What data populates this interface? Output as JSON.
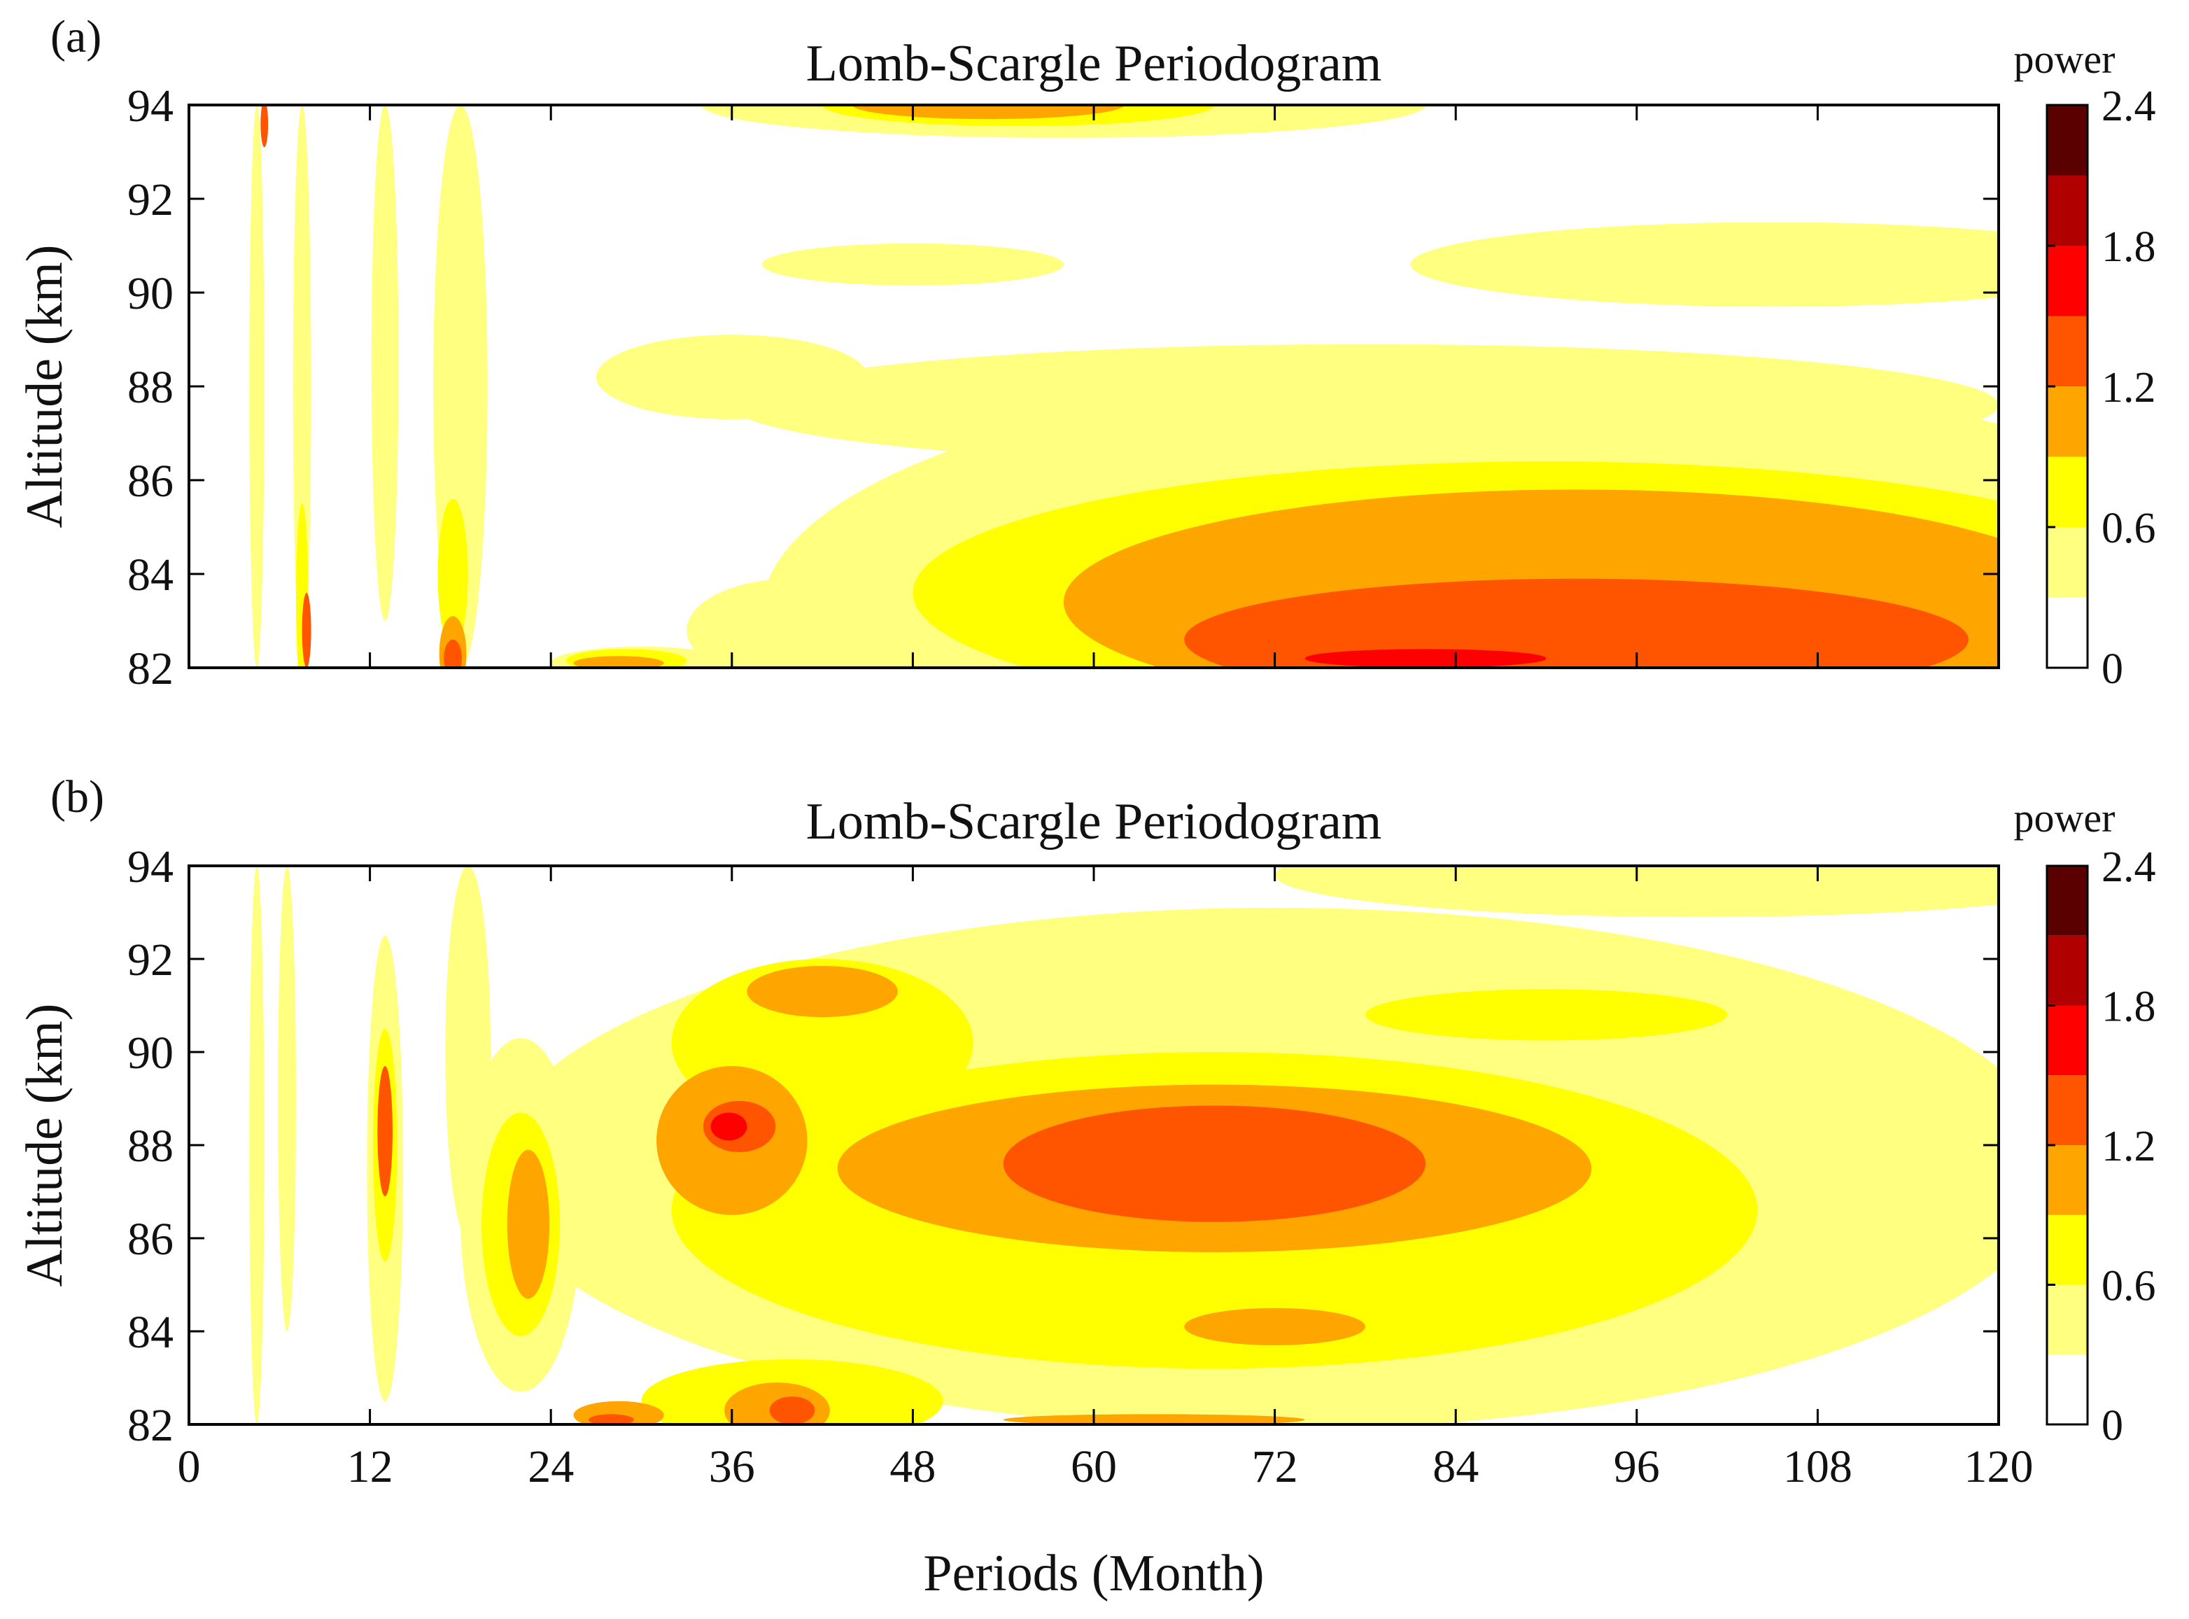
{
  "figure": {
    "xlabel": "Periods (Month)",
    "ylabel": "Altitude (km)"
  },
  "colorbar": {
    "title": "power",
    "levels": [
      0,
      0.3,
      0.6,
      0.9,
      1.2,
      1.5,
      1.8,
      2.1,
      2.4
    ],
    "colors": [
      "#ffffff",
      "#ffff80",
      "#ffff00",
      "#ffa500",
      "#ff5500",
      "#ff0000",
      "#b00000",
      "#5a0000"
    ],
    "tick_values": [
      0,
      0.6,
      1.2,
      1.8,
      2.4
    ],
    "tick_labels": [
      "0",
      "0.6",
      "1.2",
      "1.8",
      "2.4"
    ]
  },
  "chart_data": [
    {
      "type": "heatmap",
      "panel": "(a)",
      "title": "Lomb-Scargle Periodogram",
      "xlabel": "",
      "ylabel": "Altitude (km)",
      "xlim": [
        0,
        120
      ],
      "ylim": [
        82,
        94
      ],
      "x_ticks": [
        0,
        12,
        24,
        36,
        48,
        60,
        72,
        84,
        96,
        108,
        120
      ],
      "x_tick_labels": [],
      "y_ticks": [
        82,
        84,
        86,
        88,
        90,
        92,
        94
      ],
      "y_tick_labels": [
        "82",
        "84",
        "86",
        "88",
        "90",
        "92",
        "94"
      ],
      "regions": [
        {
          "level": 1,
          "x_center": 88,
          "y_center": 83.2,
          "x_radius": 50,
          "y_radius": 5.2
        },
        {
          "level": 1,
          "x_center": 78,
          "y_center": 87.6,
          "x_radius": 42,
          "y_radius": 1.3
        },
        {
          "level": 1,
          "x_center": 105,
          "y_center": 90.6,
          "x_radius": 24,
          "y_radius": 0.9
        },
        {
          "level": 1,
          "x_center": 48,
          "y_center": 90.6,
          "x_radius": 10,
          "y_radius": 0.45
        },
        {
          "level": 1,
          "x_center": 36,
          "y_center": 88.2,
          "x_radius": 9,
          "y_radius": 0.9
        },
        {
          "level": 1,
          "x_center": 58,
          "y_center": 94,
          "x_radius": 24,
          "y_radius": 0.7
        },
        {
          "level": 1,
          "x_center": 18,
          "y_center": 88,
          "x_radius": 1.8,
          "y_radius": 6
        },
        {
          "level": 1,
          "x_center": 40,
          "y_center": 82.8,
          "x_radius": 7,
          "y_radius": 1.1
        },
        {
          "level": 1,
          "x_center": 30,
          "y_center": 82.1,
          "x_radius": 6,
          "y_radius": 0.35
        },
        {
          "level": 1,
          "x_center": 13,
          "y_center": 88.5,
          "x_radius": 0.9,
          "y_radius": 5.5
        },
        {
          "level": 1,
          "x_center": 4.5,
          "y_center": 88,
          "x_radius": 0.5,
          "y_radius": 6
        },
        {
          "level": 1,
          "x_center": 7.5,
          "y_center": 88,
          "x_radius": 0.6,
          "y_radius": 6
        },
        {
          "level": 2,
          "x_center": 90,
          "y_center": 83.6,
          "x_radius": 42,
          "y_radius": 2.8
        },
        {
          "level": 2,
          "x_center": 55,
          "y_center": 94,
          "x_radius": 13,
          "y_radius": 0.45
        },
        {
          "level": 2,
          "x_center": 17.5,
          "y_center": 84,
          "x_radius": 1,
          "y_radius": 1.6
        },
        {
          "level": 2,
          "x_center": 29,
          "y_center": 82.15,
          "x_radius": 4,
          "y_radius": 0.25
        },
        {
          "level": 2,
          "x_center": 7.5,
          "y_center": 83.5,
          "x_radius": 0.4,
          "y_radius": 2
        },
        {
          "level": 3,
          "x_center": 92,
          "y_center": 83.4,
          "x_radius": 34,
          "y_radius": 2.4
        },
        {
          "level": 3,
          "x_center": 53,
          "y_center": 94,
          "x_radius": 9,
          "y_radius": 0.3
        },
        {
          "level": 3,
          "x_center": 17.5,
          "y_center": 82.3,
          "x_radius": 0.9,
          "y_radius": 0.8
        },
        {
          "level": 3,
          "x_center": 28.5,
          "y_center": 82.1,
          "x_radius": 3,
          "y_radius": 0.15
        },
        {
          "level": 4,
          "x_center": 92,
          "y_center": 82.6,
          "x_radius": 26,
          "y_radius": 1.3
        },
        {
          "level": 4,
          "x_center": 17.5,
          "y_center": 82.2,
          "x_radius": 0.6,
          "y_radius": 0.4
        },
        {
          "level": 4,
          "x_center": 7.8,
          "y_center": 82.8,
          "x_radius": 0.3,
          "y_radius": 0.8
        },
        {
          "level": 4,
          "x_center": 5,
          "y_center": 93.6,
          "x_radius": 0.25,
          "y_radius": 0.5
        },
        {
          "level": 5,
          "x_center": 82,
          "y_center": 82.2,
          "x_radius": 8,
          "y_radius": 0.2
        }
      ]
    },
    {
      "type": "heatmap",
      "panel": "(b)",
      "title": "Lomb-Scargle Periodogram",
      "xlabel": "Periods (Month)",
      "ylabel": "Altitude (km)",
      "xlim": [
        0,
        120
      ],
      "ylim": [
        82,
        94
      ],
      "x_ticks": [
        0,
        12,
        24,
        36,
        48,
        60,
        72,
        84,
        96,
        108,
        120
      ],
      "x_tick_labels": [
        "0",
        "12",
        "24",
        "36",
        "48",
        "60",
        "72",
        "84",
        "96",
        "108",
        "120"
      ],
      "y_ticks": [
        82,
        84,
        86,
        88,
        90,
        92,
        94
      ],
      "y_tick_labels": [
        "82",
        "84",
        "86",
        "88",
        "90",
        "92",
        "94"
      ],
      "regions": [
        {
          "level": 1,
          "x_center": 72,
          "y_center": 87.5,
          "x_radius": 52,
          "y_radius": 5.6
        },
        {
          "level": 1,
          "x_center": 100,
          "y_center": 93.8,
          "x_radius": 28,
          "y_radius": 0.9
        },
        {
          "level": 1,
          "x_center": 22,
          "y_center": 86.5,
          "x_radius": 4,
          "y_radius": 3.8
        },
        {
          "level": 1,
          "x_center": 13,
          "y_center": 87.5,
          "x_radius": 1.2,
          "y_radius": 5
        },
        {
          "level": 1,
          "x_center": 18.5,
          "y_center": 90,
          "x_radius": 1.5,
          "y_radius": 4
        },
        {
          "level": 1,
          "x_center": 4.5,
          "y_center": 88,
          "x_radius": 0.5,
          "y_radius": 6
        },
        {
          "level": 1,
          "x_center": 6.5,
          "y_center": 89,
          "x_radius": 0.6,
          "y_radius": 5
        },
        {
          "level": 2,
          "x_center": 68,
          "y_center": 86.6,
          "x_radius": 36,
          "y_radius": 3.4
        },
        {
          "level": 2,
          "x_center": 42,
          "y_center": 90.2,
          "x_radius": 10,
          "y_radius": 1.8
        },
        {
          "level": 2,
          "x_center": 90,
          "y_center": 90.8,
          "x_radius": 12,
          "y_radius": 0.55
        },
        {
          "level": 2,
          "x_center": 40,
          "y_center": 82.5,
          "x_radius": 10,
          "y_radius": 0.9
        },
        {
          "level": 2,
          "x_center": 22,
          "y_center": 86.3,
          "x_radius": 2.6,
          "y_radius": 2.4
        },
        {
          "level": 2,
          "x_center": 13,
          "y_center": 88,
          "x_radius": 0.8,
          "y_radius": 2.5
        },
        {
          "level": 3,
          "x_center": 68,
          "y_center": 87.5,
          "x_radius": 25,
          "y_radius": 1.8
        },
        {
          "level": 3,
          "x_center": 36,
          "y_center": 88.1,
          "x_radius": 5,
          "y_radius": 1.6
        },
        {
          "level": 3,
          "x_center": 42,
          "y_center": 91.3,
          "x_radius": 5,
          "y_radius": 0.55
        },
        {
          "level": 3,
          "x_center": 72,
          "y_center": 84.1,
          "x_radius": 6,
          "y_radius": 0.4
        },
        {
          "level": 3,
          "x_center": 39,
          "y_center": 82.3,
          "x_radius": 3.5,
          "y_radius": 0.6
        },
        {
          "level": 3,
          "x_center": 28.5,
          "y_center": 82.2,
          "x_radius": 3,
          "y_radius": 0.3
        },
        {
          "level": 3,
          "x_center": 22.5,
          "y_center": 86.3,
          "x_radius": 1.4,
          "y_radius": 1.6
        },
        {
          "level": 3,
          "x_center": 64,
          "y_center": 82.1,
          "x_radius": 10,
          "y_radius": 0.12
        },
        {
          "level": 4,
          "x_center": 68,
          "y_center": 87.6,
          "x_radius": 14,
          "y_radius": 1.25
        },
        {
          "level": 4,
          "x_center": 36.5,
          "y_center": 88.4,
          "x_radius": 2.4,
          "y_radius": 0.55
        },
        {
          "level": 4,
          "x_center": 13,
          "y_center": 88.3,
          "x_radius": 0.5,
          "y_radius": 1.4
        },
        {
          "level": 4,
          "x_center": 28,
          "y_center": 82.1,
          "x_radius": 1.5,
          "y_radius": 0.12
        },
        {
          "level": 4,
          "x_center": 40,
          "y_center": 82.3,
          "x_radius": 1.5,
          "y_radius": 0.3
        },
        {
          "level": 5,
          "x_center": 35.8,
          "y_center": 88.4,
          "x_radius": 1.2,
          "y_radius": 0.3
        }
      ]
    }
  ]
}
